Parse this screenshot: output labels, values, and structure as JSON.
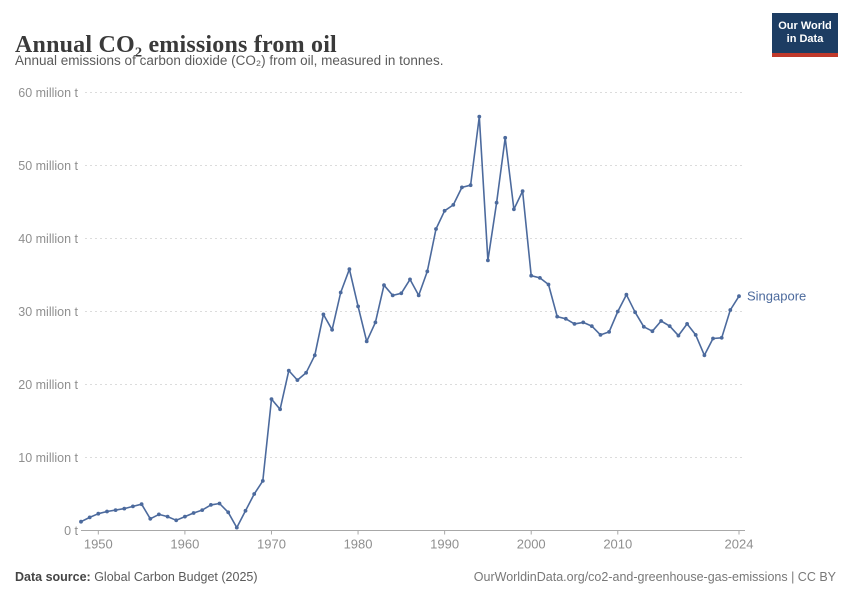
{
  "header": {
    "title": "Annual CO₂ emissions from oil",
    "subtitle": "Annual emissions of carbon dioxide (CO₂) from oil, measured in tonnes.",
    "logo": {
      "line1": "Our World",
      "line2": "in Data"
    }
  },
  "footer": {
    "source_label": "Data source:",
    "source_value": " Global Carbon Budget (2025)",
    "credit": "OurWorldinData.org/co2-and-greenhouse-gas-emissions | CC BY"
  },
  "colors": {
    "line": "#4c6a9d",
    "series_label": "#4c6a9d",
    "grid": "#dcdcdc",
    "axis": "#a8a8a8",
    "tick_text": "#8f8f8f",
    "logo_bg": "#1d3d63",
    "logo_red": "#c0392b"
  },
  "chart_data": {
    "type": "line",
    "title": "Annual CO₂ emissions from oil",
    "subtitle": "Annual emissions of carbon dioxide (CO₂) from oil, measured in tonnes.",
    "unit": "million tonnes",
    "xlim": [
      1948,
      2024
    ],
    "ylim": [
      0,
      60
    ],
    "grid": "horizontal-dashed",
    "legend": "line-end-label",
    "x_ticks": [
      1950,
      1960,
      1970,
      1980,
      1990,
      2000,
      2010,
      2024
    ],
    "y_ticks": [
      {
        "value": 0,
        "label": "0 t"
      },
      {
        "value": 10,
        "label": "10 million t"
      },
      {
        "value": 20,
        "label": "20 million t"
      },
      {
        "value": 30,
        "label": "30 million t"
      },
      {
        "value": 40,
        "label": "40 million t"
      },
      {
        "value": 50,
        "label": "50 million t"
      },
      {
        "value": 60,
        "label": "60 million t"
      }
    ],
    "series": [
      {
        "name": "Singapore",
        "x": [
          1948,
          1949,
          1950,
          1951,
          1952,
          1953,
          1954,
          1955,
          1956,
          1957,
          1958,
          1959,
          1960,
          1961,
          1962,
          1963,
          1964,
          1965,
          1966,
          1967,
          1968,
          1969,
          1970,
          1971,
          1972,
          1973,
          1974,
          1975,
          1976,
          1977,
          1978,
          1979,
          1980,
          1981,
          1982,
          1983,
          1984,
          1985,
          1986,
          1987,
          1988,
          1989,
          1990,
          1991,
          1992,
          1993,
          1994,
          1995,
          1996,
          1997,
          1998,
          1999,
          2000,
          2001,
          2002,
          2003,
          2004,
          2005,
          2006,
          2007,
          2008,
          2009,
          2010,
          2011,
          2012,
          2013,
          2014,
          2015,
          2016,
          2017,
          2018,
          2019,
          2020,
          2021,
          2022,
          2023,
          2024
        ],
        "values": [
          1.2,
          1.8,
          2.3,
          2.6,
          2.8,
          3.0,
          3.3,
          3.6,
          1.6,
          2.2,
          1.9,
          1.4,
          1.9,
          2.4,
          2.8,
          3.5,
          3.7,
          2.5,
          0.4,
          2.7,
          5.0,
          6.8,
          18.0,
          16.6,
          21.9,
          20.6,
          21.6,
          24.0,
          29.6,
          27.5,
          32.6,
          35.8,
          30.7,
          25.9,
          28.5,
          33.6,
          32.2,
          32.5,
          34.4,
          32.2,
          35.5,
          41.3,
          43.8,
          44.6,
          47.0,
          47.3,
          56.7,
          37.0,
          44.9,
          53.8,
          44.0,
          46.5,
          34.9,
          34.6,
          33.7,
          29.3,
          29.0,
          28.3,
          28.5,
          28.0,
          26.8,
          27.2,
          30.0,
          32.3,
          29.9,
          27.9,
          27.3,
          28.7,
          28.0,
          26.7,
          28.3,
          26.8,
          24.0,
          26.3,
          26.4,
          30.2,
          32.1
        ]
      }
    ]
  }
}
